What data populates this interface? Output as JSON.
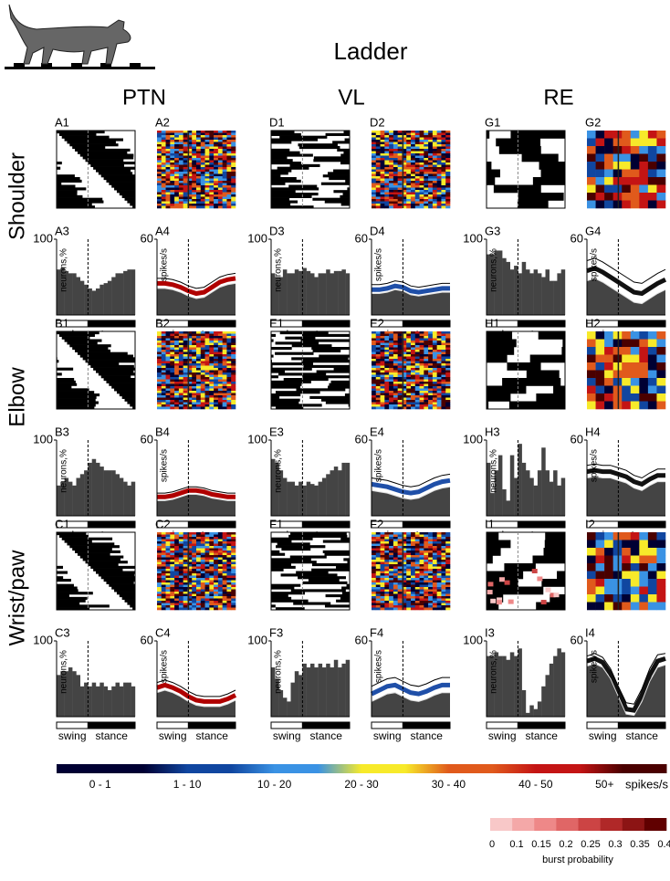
{
  "title": "Ladder",
  "columns": [
    {
      "name": "PTN",
      "color": "#b00000"
    },
    {
      "name": "VL",
      "color": "#1f4fa8"
    },
    {
      "name": "RE",
      "color": "#111111"
    }
  ],
  "rows": [
    "Shoulder",
    "Elbow",
    "Wrist/paw"
  ],
  "hist_axis": {
    "label": "neurons,%",
    "ylim": [
      0,
      100
    ],
    "yticks": [
      100
    ]
  },
  "rate_axis": {
    "label": "spikes/s",
    "ylim": [
      0,
      60
    ],
    "yticks": [
      60
    ]
  },
  "phase_labels": [
    "swing",
    "stance"
  ],
  "groups": [
    {
      "labels": [
        "A1",
        "A2",
        "A3",
        "A4"
      ],
      "hist": [
        60,
        62,
        58,
        55,
        55,
        50,
        45,
        40,
        35,
        32,
        35,
        40,
        42,
        45,
        50,
        55,
        55,
        58,
        60,
        60
      ],
      "rate": {
        "upper": [
          29,
          29,
          28,
          26,
          23,
          21,
          22,
          26,
          30,
          32,
          33
        ],
        "mean": [
          25,
          25,
          24,
          22,
          19,
          17,
          18,
          22,
          26,
          28,
          29
        ],
        "lower": [
          21,
          21,
          20,
          18,
          15,
          13,
          14,
          18,
          22,
          24,
          25
        ]
      }
    },
    {
      "labels": [
        "D1",
        "D2",
        "D3",
        "D4"
      ],
      "hist": [
        55,
        50,
        50,
        60,
        55,
        55,
        60,
        58,
        62,
        58,
        55,
        50,
        55,
        55,
        60,
        55,
        58,
        58,
        60,
        55
      ],
      "rate": {
        "upper": [
          24,
          24,
          25,
          27,
          26,
          23,
          22,
          23,
          24,
          25,
          25
        ],
        "mean": [
          20,
          20,
          21,
          23,
          22,
          19,
          18,
          19,
          20,
          21,
          21
        ],
        "lower": [
          17,
          17,
          18,
          20,
          19,
          16,
          15,
          16,
          17,
          18,
          18
        ]
      }
    },
    {
      "labels": [
        "G1",
        "G2",
        "G3",
        "G4"
      ],
      "hist": [
        80,
        80,
        85,
        85,
        75,
        70,
        60,
        65,
        55,
        70,
        60,
        55,
        60,
        55,
        50,
        60,
        45,
        45,
        55,
        60
      ],
      "rate": {
        "upper": [
          43,
          45,
          42,
          38,
          34,
          30,
          26,
          25,
          29,
          33,
          36
        ],
        "mean": [
          35,
          37,
          34,
          30,
          26,
          22,
          18,
          17,
          21,
          25,
          28
        ],
        "lower": [
          27,
          29,
          26,
          22,
          18,
          14,
          10,
          9,
          13,
          17,
          20
        ]
      }
    },
    {
      "labels": [
        "B1",
        "B2",
        "B3",
        "B4"
      ],
      "hist": [
        40,
        45,
        50,
        45,
        40,
        50,
        55,
        60,
        70,
        75,
        70,
        65,
        60,
        60,
        60,
        55,
        50,
        45,
        40,
        45
      ],
      "rate": {
        "upper": [
          18,
          18,
          19,
          21,
          23,
          23,
          22,
          20,
          19,
          18,
          18
        ],
        "mean": [
          15,
          15,
          16,
          18,
          20,
          20,
          19,
          17,
          16,
          15,
          15
        ],
        "lower": [
          12,
          12,
          13,
          15,
          17,
          17,
          16,
          14,
          13,
          12,
          12
        ]
      }
    },
    {
      "labels": [
        "E1",
        "E2",
        "E3",
        "E4"
      ],
      "hist": [
        75,
        70,
        60,
        50,
        45,
        45,
        40,
        45,
        40,
        45,
        42,
        40,
        45,
        50,
        55,
        60,
        65,
        60,
        70,
        70
      ],
      "rate": {
        "upper": [
          30,
          29,
          28,
          26,
          24,
          23,
          24,
          27,
          30,
          32,
          33
        ],
        "mean": [
          25,
          24,
          23,
          21,
          19,
          18,
          19,
          22,
          25,
          27,
          28
        ],
        "lower": [
          20,
          19,
          18,
          16,
          14,
          13,
          14,
          17,
          20,
          22,
          23
        ]
      }
    },
    {
      "labels": [
        "H1",
        "H2",
        "H3",
        "H4"
      ],
      "hist": [
        70,
        30,
        60,
        80,
        35,
        20,
        80,
        50,
        95,
        70,
        60,
        50,
        40,
        60,
        90,
        60,
        45,
        60,
        40,
        50
      ],
      "rate": {
        "upper": [
          40,
          41,
          40,
          40,
          38,
          36,
          32,
          30,
          34,
          37,
          37
        ],
        "mean": [
          35,
          36,
          35,
          35,
          33,
          31,
          27,
          25,
          29,
          32,
          32
        ],
        "lower": [
          30,
          31,
          30,
          30,
          28,
          26,
          22,
          20,
          24,
          27,
          27
        ]
      }
    },
    {
      "labels": [
        "C1",
        "C2",
        "C3",
        "C4"
      ],
      "hist": [
        55,
        60,
        60,
        65,
        60,
        55,
        40,
        45,
        40,
        45,
        40,
        45,
        40,
        35,
        40,
        45,
        40,
        45,
        45,
        40
      ],
      "rate": {
        "upper": [
          27,
          29,
          27,
          24,
          20,
          17,
          16,
          16,
          16,
          18,
          21
        ],
        "mean": [
          23,
          25,
          23,
          20,
          16,
          13,
          12,
          12,
          12,
          14,
          17
        ],
        "lower": [
          19,
          21,
          19,
          16,
          12,
          9,
          8,
          8,
          8,
          10,
          13
        ]
      }
    },
    {
      "labels": [
        "F1",
        "F2",
        "F3",
        "F4"
      ],
      "hist": [
        65,
        50,
        35,
        25,
        20,
        45,
        60,
        55,
        70,
        65,
        70,
        65,
        70,
        65,
        70,
        65,
        75,
        65,
        70,
        75
      ],
      "rate": {
        "upper": [
          24,
          27,
          30,
          31,
          28,
          25,
          24,
          26,
          29,
          31,
          31
        ],
        "mean": [
          18,
          21,
          24,
          25,
          22,
          19,
          18,
          20,
          23,
          25,
          25
        ],
        "lower": [
          12,
          15,
          18,
          19,
          16,
          13,
          12,
          14,
          17,
          19,
          19
        ]
      }
    },
    {
      "labels": [
        "I1",
        "I2",
        "I3",
        "I4"
      ],
      "hist": [
        80,
        80,
        85,
        80,
        80,
        75,
        85,
        80,
        90,
        35,
        5,
        15,
        10,
        20,
        40,
        55,
        70,
        80,
        90,
        85
      ],
      "rate": {
        "upper": [
          48,
          50,
          47,
          38,
          24,
          11,
          10,
          22,
          38,
          49,
          50
        ],
        "mean": [
          44,
          46,
          43,
          34,
          20,
          6,
          5,
          17,
          33,
          44,
          46
        ],
        "lower": [
          40,
          42,
          39,
          30,
          16,
          2,
          1,
          12,
          28,
          39,
          41
        ]
      }
    }
  ],
  "colorbar": {
    "labels": [
      "0 - 1",
      "1 - 10",
      "10 - 20",
      "20 - 30",
      "30 - 40",
      "40 - 50",
      "50+"
    ],
    "unit": "spikes/s",
    "colors": [
      "#000033",
      "#1046a0",
      "#3a92e4",
      "#f7ea2a",
      "#e05a1c",
      "#c41414",
      "#4a0000"
    ]
  },
  "burst": {
    "ticks": [
      "0",
      "0.1",
      "0.15",
      "0.2",
      "0.25",
      "0.3",
      "0.35",
      "0.4"
    ],
    "label": "burst probability",
    "colors": [
      "#f8c8c8",
      "#f4a8a8",
      "#ee8888",
      "#e06666",
      "#cc4444",
      "#b02828",
      "#8c1414",
      "#600000"
    ]
  }
}
